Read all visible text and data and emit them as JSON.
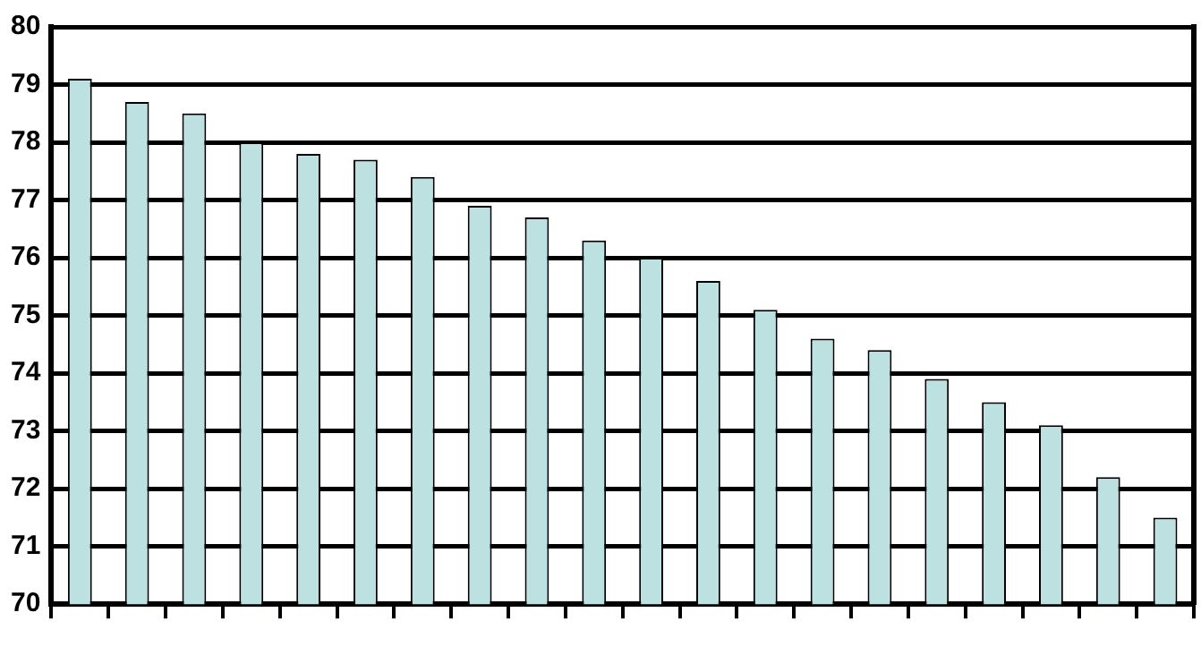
{
  "chart_data": {
    "type": "bar",
    "categories": [
      null,
      null,
      null,
      null,
      null,
      null,
      null,
      null,
      null,
      null,
      null,
      null,
      null,
      null,
      null,
      null,
      null,
      null,
      null,
      null
    ],
    "values": [
      79.1,
      78.7,
      78.5,
      78.0,
      77.8,
      77.7,
      77.4,
      76.9,
      76.7,
      76.3,
      76.0,
      75.6,
      75.1,
      74.6,
      74.4,
      73.9,
      73.5,
      73.1,
      72.2,
      71.5
    ],
    "color": "#bde0e0",
    "ylim": [
      70,
      80
    ],
    "yticks": [
      70,
      71,
      72,
      73,
      74,
      75,
      76,
      77,
      78,
      79,
      80
    ],
    "grid": "y"
  }
}
